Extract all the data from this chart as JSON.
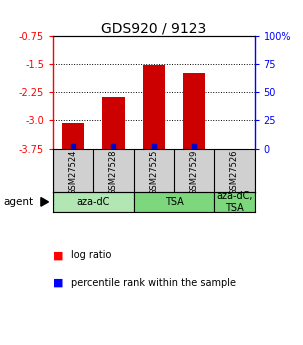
{
  "title": "GDS920 / 9123",
  "samples": [
    "GSM27524",
    "GSM27528",
    "GSM27525",
    "GSM27529",
    "GSM27526"
  ],
  "log_ratios": [
    -3.08,
    -2.38,
    -1.52,
    -1.72,
    null
  ],
  "percentile_ranks": [
    2,
    2,
    2,
    2,
    null
  ],
  "agent_groups": [
    {
      "label": "aza-dC",
      "cols": [
        0,
        1
      ],
      "color": "#b2e6b2"
    },
    {
      "label": "TSA",
      "cols": [
        2,
        3
      ],
      "color": "#7dd87d"
    },
    {
      "label": "aza-dC,\nTSA",
      "cols": [
        4
      ],
      "color": "#7dd87d"
    }
  ],
  "ylim_left": [
    -3.75,
    -0.75
  ],
  "yticks_left": [
    -3.75,
    -3.0,
    -2.25,
    -1.5,
    -0.75
  ],
  "yticks_right": [
    0,
    25,
    50,
    75,
    100
  ],
  "bar_color": "#cc0000",
  "percentile_color": "#0000cc",
  "sample_bg": "#d0d0d0",
  "title_fontsize": 10,
  "tick_fontsize": 7,
  "sample_fontsize": 6,
  "agent_fontsize": 7,
  "legend_fontsize": 7
}
